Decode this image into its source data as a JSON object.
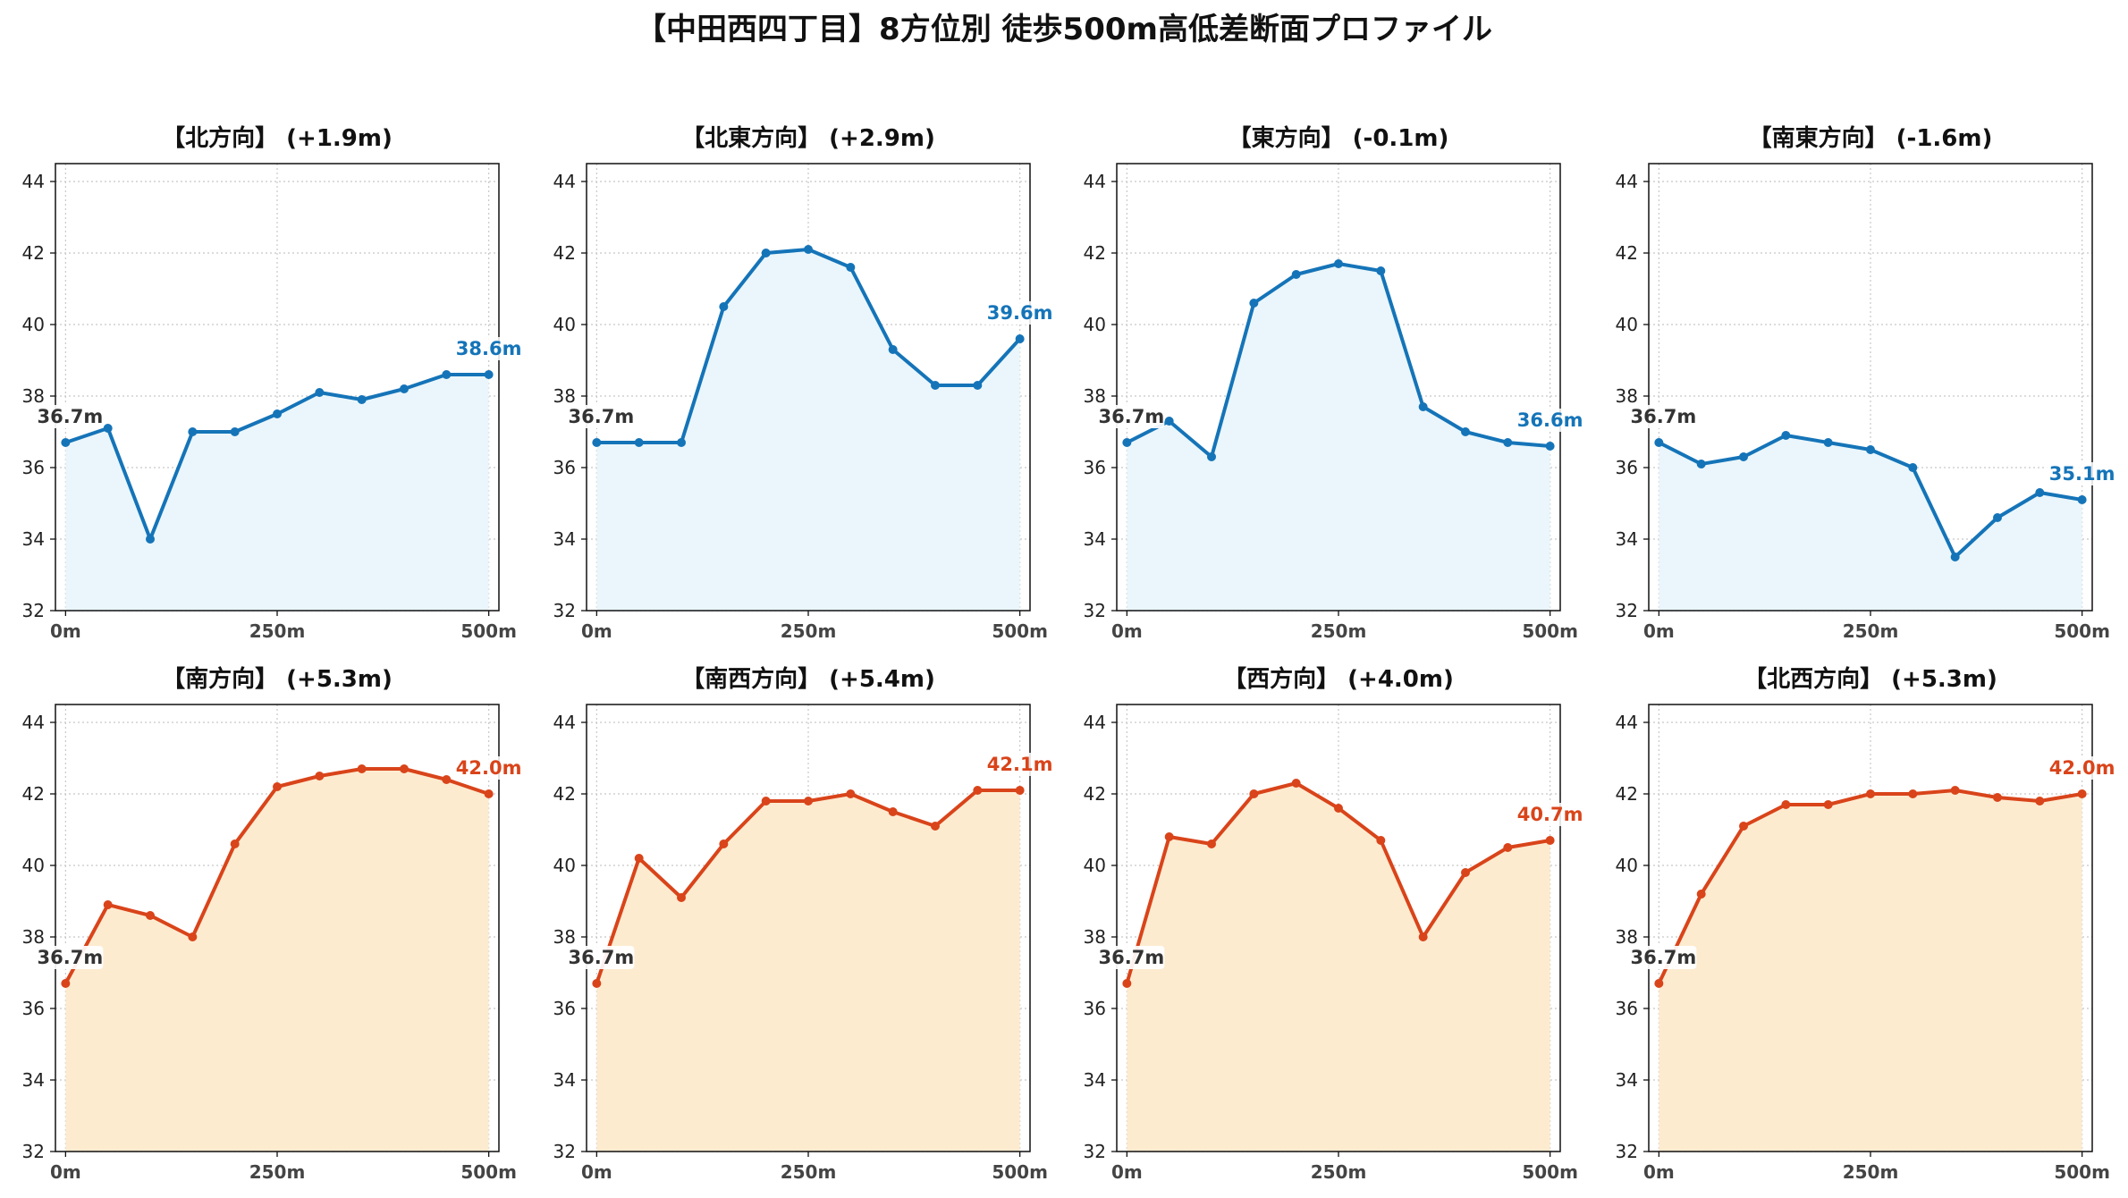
{
  "title": "【中田西四丁目】8方位別 徒歩500m高低差断面プロファイル",
  "colors": {
    "up_line": "#d9441a",
    "up_fill": "#fdebd0",
    "down_line": "#1574b8",
    "down_fill": "#eaf6fb"
  },
  "chart_data": [
    {
      "type": "area",
      "title": "【北方向】 (+1.9m)",
      "x": [
        0,
        50,
        100,
        150,
        200,
        250,
        300,
        350,
        400,
        450,
        500
      ],
      "values": [
        36.7,
        37.1,
        34.0,
        37.0,
        37.0,
        37.5,
        38.1,
        37.9,
        38.2,
        38.6,
        38.6
      ],
      "start_label": "36.7m",
      "end_label": "38.6m",
      "palette": "down",
      "xticks": [
        "0m",
        "250m",
        "500m"
      ],
      "yticks": [
        "32",
        "34",
        "36",
        "38",
        "40",
        "42",
        "44"
      ],
      "ylim": [
        32,
        44.5
      ],
      "xlim": [
        -12,
        512
      ],
      "grid": true
    },
    {
      "type": "area",
      "title": "【北東方向】 (+2.9m)",
      "x": [
        0,
        50,
        100,
        150,
        200,
        250,
        300,
        350,
        400,
        450,
        500
      ],
      "values": [
        36.7,
        36.7,
        36.7,
        40.5,
        42.0,
        42.1,
        41.6,
        39.3,
        38.3,
        38.3,
        39.6
      ],
      "start_label": "36.7m",
      "end_label": "39.6m",
      "palette": "down",
      "xticks": [
        "0m",
        "250m",
        "500m"
      ],
      "yticks": [
        "32",
        "34",
        "36",
        "38",
        "40",
        "42",
        "44"
      ],
      "ylim": [
        32,
        44.5
      ],
      "xlim": [
        -12,
        512
      ],
      "grid": true
    },
    {
      "type": "area",
      "title": "【東方向】 (-0.1m)",
      "x": [
        0,
        50,
        100,
        150,
        200,
        250,
        300,
        350,
        400,
        450,
        500
      ],
      "values": [
        36.7,
        37.3,
        36.3,
        40.6,
        41.4,
        41.7,
        41.5,
        37.7,
        37.0,
        36.7,
        36.6
      ],
      "start_label": "36.7m",
      "end_label": "36.6m",
      "palette": "down",
      "xticks": [
        "0m",
        "250m",
        "500m"
      ],
      "yticks": [
        "32",
        "34",
        "36",
        "38",
        "40",
        "42",
        "44"
      ],
      "ylim": [
        32,
        44.5
      ],
      "xlim": [
        -12,
        512
      ],
      "grid": true
    },
    {
      "type": "area",
      "title": "【南東方向】 (-1.6m)",
      "x": [
        0,
        50,
        100,
        150,
        200,
        250,
        300,
        350,
        400,
        450,
        500
      ],
      "values": [
        36.7,
        36.1,
        36.3,
        36.9,
        36.7,
        36.5,
        36.0,
        33.5,
        34.6,
        35.3,
        35.1
      ],
      "start_label": "36.7m",
      "end_label": "35.1m",
      "palette": "down",
      "xticks": [
        "0m",
        "250m",
        "500m"
      ],
      "yticks": [
        "32",
        "34",
        "36",
        "38",
        "40",
        "42",
        "44"
      ],
      "ylim": [
        32,
        44.5
      ],
      "xlim": [
        -12,
        512
      ],
      "grid": true
    },
    {
      "type": "area",
      "title": "【南方向】 (+5.3m)",
      "x": [
        0,
        50,
        100,
        150,
        200,
        250,
        300,
        350,
        400,
        450,
        500
      ],
      "values": [
        36.7,
        38.9,
        38.6,
        38.0,
        40.6,
        42.2,
        42.5,
        42.7,
        42.7,
        42.4,
        42.0
      ],
      "start_label": "36.7m",
      "end_label": "42.0m",
      "palette": "up",
      "xticks": [
        "0m",
        "250m",
        "500m"
      ],
      "yticks": [
        "32",
        "34",
        "36",
        "38",
        "40",
        "42",
        "44"
      ],
      "ylim": [
        32,
        44.5
      ],
      "xlim": [
        -12,
        512
      ],
      "grid": true
    },
    {
      "type": "area",
      "title": "【南西方向】 (+5.4m)",
      "x": [
        0,
        50,
        100,
        150,
        200,
        250,
        300,
        350,
        400,
        450,
        500
      ],
      "values": [
        36.7,
        40.2,
        39.1,
        40.6,
        41.8,
        41.8,
        42.0,
        41.5,
        41.1,
        42.1,
        42.1
      ],
      "start_label": "36.7m",
      "end_label": "42.1m",
      "palette": "up",
      "xticks": [
        "0m",
        "250m",
        "500m"
      ],
      "yticks": [
        "32",
        "34",
        "36",
        "38",
        "40",
        "42",
        "44"
      ],
      "ylim": [
        32,
        44.5
      ],
      "xlim": [
        -12,
        512
      ],
      "grid": true
    },
    {
      "type": "area",
      "title": "【西方向】 (+4.0m)",
      "x": [
        0,
        50,
        100,
        150,
        200,
        250,
        300,
        350,
        400,
        450,
        500
      ],
      "values": [
        36.7,
        40.8,
        40.6,
        42.0,
        42.3,
        41.6,
        40.7,
        38.0,
        39.8,
        40.5,
        40.7
      ],
      "start_label": "36.7m",
      "end_label": "40.7m",
      "palette": "up",
      "xticks": [
        "0m",
        "250m",
        "500m"
      ],
      "yticks": [
        "32",
        "34",
        "36",
        "38",
        "40",
        "42",
        "44"
      ],
      "ylim": [
        32,
        44.5
      ],
      "xlim": [
        -12,
        512
      ],
      "grid": true
    },
    {
      "type": "area",
      "title": "【北西方向】 (+5.3m)",
      "x": [
        0,
        50,
        100,
        150,
        200,
        250,
        300,
        350,
        400,
        450,
        500
      ],
      "values": [
        36.7,
        39.2,
        41.1,
        41.7,
        41.7,
        42.0,
        42.0,
        42.1,
        41.9,
        41.8,
        42.0
      ],
      "start_label": "36.7m",
      "end_label": "42.0m",
      "palette": "up",
      "xticks": [
        "0m",
        "250m",
        "500m"
      ],
      "yticks": [
        "32",
        "34",
        "36",
        "38",
        "40",
        "42",
        "44"
      ],
      "ylim": [
        32,
        44.5
      ],
      "xlim": [
        -12,
        512
      ],
      "grid": true
    }
  ]
}
